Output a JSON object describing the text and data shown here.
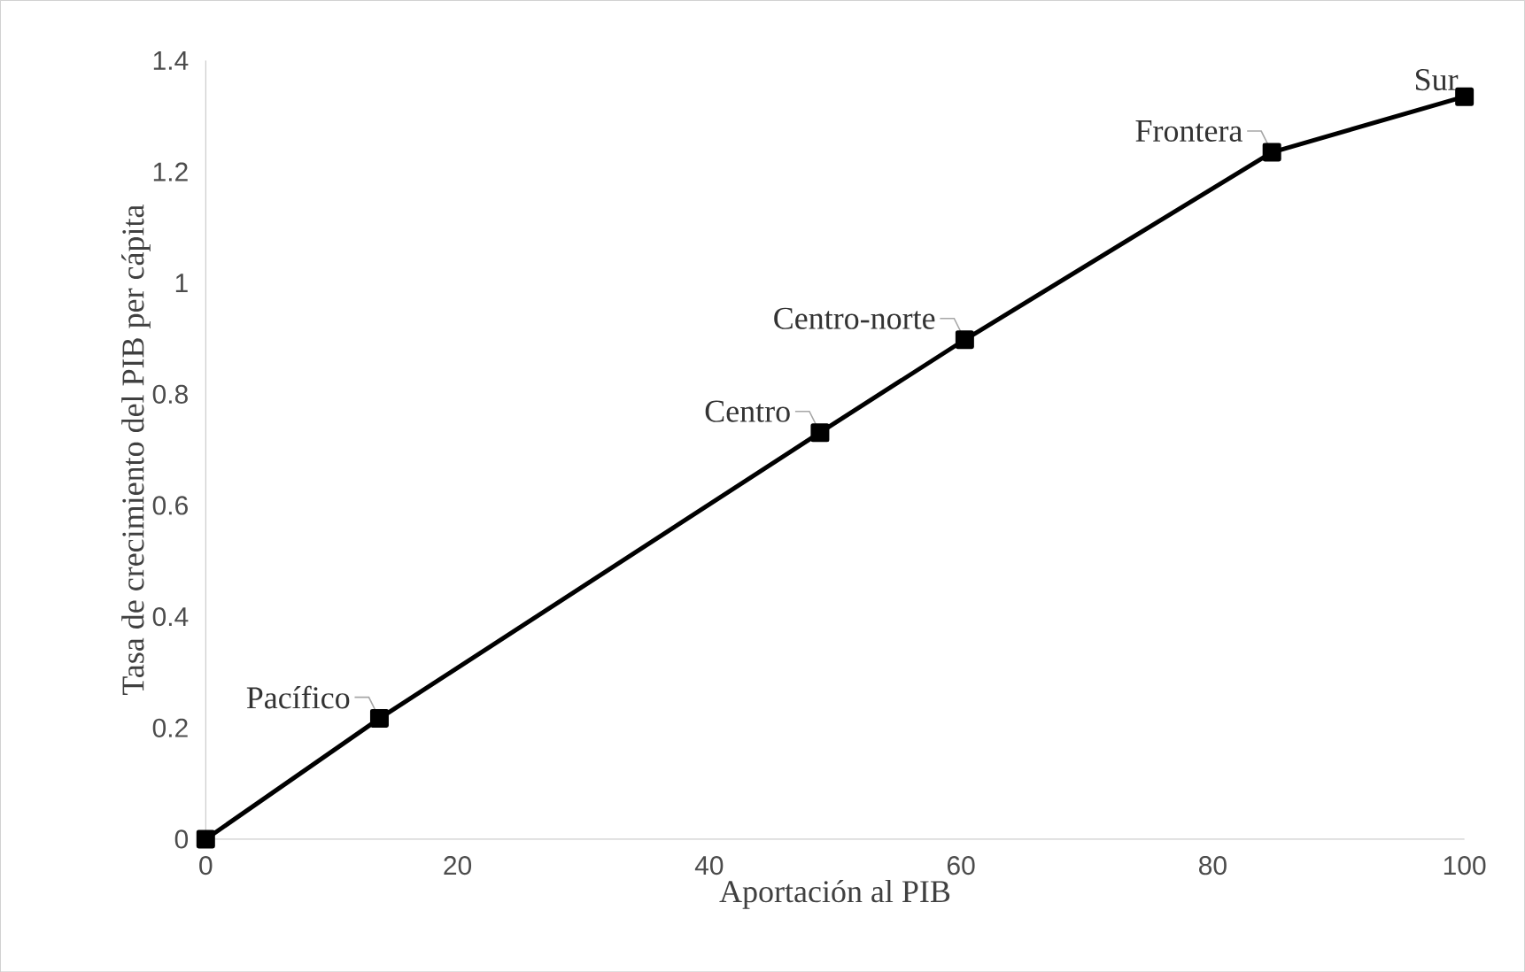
{
  "chart_data": {
    "type": "line",
    "xlabel": "Aportación al PIB",
    "ylabel": "Tasa de crecimiento del PIB per cápita",
    "x": [
      0,
      13.8,
      48.8,
      60.3,
      84.7,
      100
    ],
    "series": [
      {
        "color": "#000000",
        "values": [
          0,
          0.217,
          0.731,
          0.898,
          1.235,
          1.335
        ]
      }
    ],
    "xlim": [
      0,
      100
    ],
    "ylim": [
      0,
      1.4
    ],
    "xticks": [
      0,
      20,
      40,
      60,
      80,
      100
    ],
    "yticks": [
      0,
      0.2,
      0.4,
      0.6,
      0.8,
      1,
      1.2,
      1.4
    ],
    "marker": "square",
    "line_style": "solid",
    "grid": false,
    "annotations": [
      {
        "text": "Pacífico",
        "x": 13.8,
        "y": 0.217
      },
      {
        "text": "Centro",
        "x": 48.8,
        "y": 0.731
      },
      {
        "text": "Centro-norte",
        "x": 60.3,
        "y": 0.898
      },
      {
        "text": "Frontera",
        "x": 84.7,
        "y": 1.235
      },
      {
        "text": "Sur",
        "x": 100,
        "y": 1.335
      }
    ]
  }
}
